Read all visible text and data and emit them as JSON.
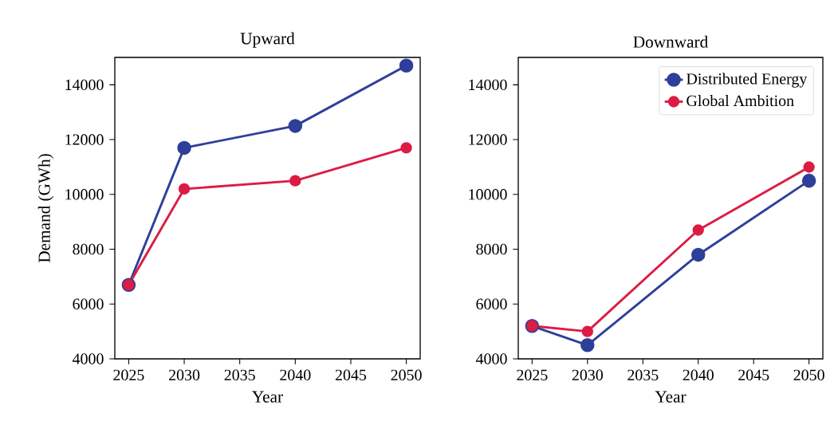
{
  "chart_data": [
    {
      "type": "line",
      "title": "Upward",
      "xlabel": "Year",
      "ylabel": "Demand (GWh)",
      "x": [
        2025,
        2030,
        2040,
        2050
      ],
      "series": [
        {
          "color": "#2e3f9a",
          "values": [
            6700,
            11700,
            12500,
            14700
          ]
        },
        {
          "color": "#dc1c44",
          "values": [
            6700,
            10200,
            10500,
            11700
          ]
        }
      ],
      "xlim": [
        2023.75,
        2051.25
      ],
      "ylim": [
        4000,
        15000
      ],
      "xticks": [
        2025,
        2030,
        2035,
        2040,
        2045,
        2050
      ],
      "yticks": [
        4000,
        6000,
        8000,
        10000,
        12000,
        14000
      ],
      "marker": "circle",
      "line_style": "solid",
      "grid": false,
      "legend": false
    },
    {
      "type": "line",
      "title": "Downward",
      "xlabel": "Year",
      "x": [
        2025,
        2030,
        2040,
        2050
      ],
      "series": [
        {
          "name": "Distributed Energy",
          "color": "#2e3f9a",
          "values": [
            5200,
            4500,
            7800,
            10500
          ]
        },
        {
          "name": "Global Ambition",
          "color": "#dc1c44",
          "values": [
            5200,
            5000,
            8700,
            11000
          ]
        }
      ],
      "xlim": [
        2023.75,
        2051.25
      ],
      "ylim": [
        4000,
        15000
      ],
      "xticks": [
        2025,
        2030,
        2035,
        2040,
        2045,
        2050
      ],
      "yticks": [
        4000,
        6000,
        8000,
        10000,
        12000,
        14000
      ],
      "marker": "circle",
      "line_style": "solid",
      "grid": false,
      "legend": "top right"
    }
  ]
}
